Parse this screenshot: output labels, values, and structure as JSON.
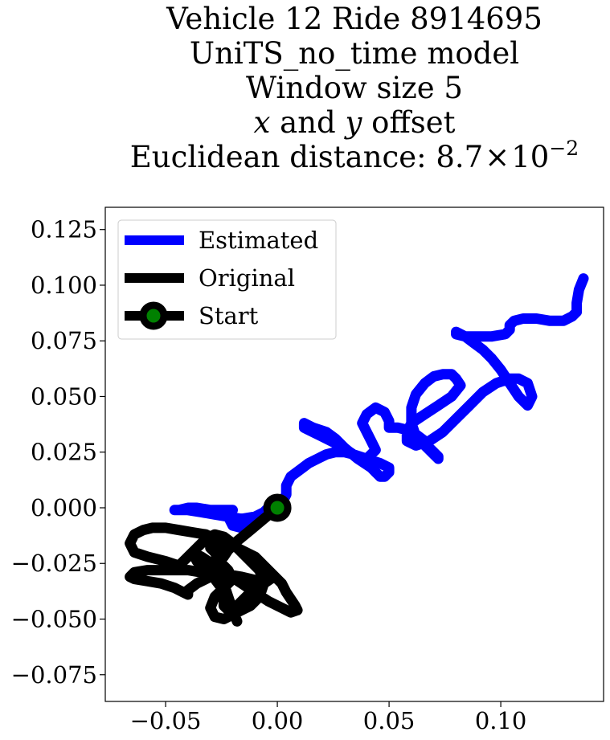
{
  "chart_data": {
    "type": "line",
    "title_lines": [
      "Vehicle 12 Ride 8914695",
      "UniTS_no_time model",
      "Window size 5",
      "x and y offset",
      "Euclidean distance: 8.7×10^-2"
    ],
    "title_parts": {
      "var_x": "x",
      "and": " and ",
      "var_y": "y",
      "offset": " offset",
      "dist_prefix": "Euclidean distance: ",
      "dist_mantissa": "8.7",
      "dist_times": "×",
      "dist_base": "10",
      "dist_exp": "−2"
    },
    "xlabel": "",
    "ylabel": "",
    "xlim": [
      -0.077,
      0.146
    ],
    "ylim": [
      -0.087,
      0.135
    ],
    "xticks": [
      -0.05,
      0.0,
      0.05,
      0.1
    ],
    "xtick_labels": [
      "−0.05",
      "0.00",
      "0.05",
      "0.10"
    ],
    "yticks": [
      -0.075,
      -0.05,
      -0.025,
      0.0,
      0.025,
      0.05,
      0.075,
      0.1,
      0.125
    ],
    "ytick_labels": [
      "−0.075",
      "−0.050",
      "−0.025",
      "0.000",
      "0.025",
      "0.050",
      "0.075",
      "0.100",
      "0.125"
    ],
    "grid": false,
    "legend_position": "top-left",
    "series": [
      {
        "name": "Estimated",
        "color": "#0000ff",
        "x": [
          0.0,
          -0.002,
          -0.006,
          -0.01,
          -0.016,
          -0.02,
          -0.022,
          -0.02,
          -0.024,
          -0.03,
          -0.036,
          -0.04,
          -0.044,
          -0.046,
          -0.044,
          -0.04,
          -0.034,
          -0.028,
          -0.022,
          -0.016,
          -0.01,
          -0.006,
          -0.003,
          0.0,
          0.003,
          0.004,
          0.004,
          0.006,
          0.01,
          0.014,
          0.018,
          0.022,
          0.026,
          0.03,
          0.034,
          0.04,
          0.046,
          0.05,
          0.05,
          0.048,
          0.046,
          0.044,
          0.042,
          0.036,
          0.03,
          0.026,
          0.022,
          0.016,
          0.012,
          0.012,
          0.02,
          0.028,
          0.034,
          0.04,
          0.044,
          0.042,
          0.04,
          0.038,
          0.04,
          0.044,
          0.048,
          0.05,
          0.05,
          0.05,
          0.054,
          0.058,
          0.062,
          0.066,
          0.068,
          0.07,
          0.072,
          0.072,
          0.07,
          0.066,
          0.062,
          0.06,
          0.06,
          0.062,
          0.066,
          0.07,
          0.074,
          0.078,
          0.08,
          0.082,
          0.078,
          0.072,
          0.066,
          0.06,
          0.058,
          0.058,
          0.062,
          0.068,
          0.074,
          0.08,
          0.086,
          0.092,
          0.098,
          0.104,
          0.108,
          0.112,
          0.114,
          0.112,
          0.108,
          0.104,
          0.1,
          0.096,
          0.092,
          0.088,
          0.084,
          0.08,
          0.08,
          0.084,
          0.09,
          0.096,
          0.102,
          0.104,
          0.104,
          0.106,
          0.11,
          0.116,
          0.122,
          0.128,
          0.132,
          0.134,
          0.134,
          0.135,
          0.137
        ],
        "y": [
          0.0,
          -0.001,
          -0.003,
          -0.006,
          -0.009,
          -0.008,
          -0.004,
          -0.001,
          -0.001,
          -0.001,
          0.0,
          0.0,
          -0.001,
          -0.001,
          -0.001,
          -0.001,
          -0.002,
          -0.003,
          -0.004,
          -0.005,
          -0.004,
          -0.002,
          0.001,
          0.003,
          0.004,
          0.006,
          0.01,
          0.014,
          0.017,
          0.02,
          0.022,
          0.024,
          0.025,
          0.025,
          0.024,
          0.022,
          0.02,
          0.018,
          0.016,
          0.014,
          0.014,
          0.016,
          0.018,
          0.022,
          0.027,
          0.031,
          0.034,
          0.036,
          0.038,
          0.036,
          0.032,
          0.028,
          0.024,
          0.022,
          0.026,
          0.03,
          0.034,
          0.038,
          0.042,
          0.045,
          0.043,
          0.039,
          0.036,
          0.036,
          0.036,
          0.035,
          0.033,
          0.03,
          0.027,
          0.025,
          0.023,
          0.022,
          0.024,
          0.028,
          0.032,
          0.038,
          0.045,
          0.051,
          0.056,
          0.059,
          0.06,
          0.06,
          0.058,
          0.055,
          0.05,
          0.046,
          0.042,
          0.038,
          0.034,
          0.03,
          0.028,
          0.03,
          0.034,
          0.04,
          0.046,
          0.052,
          0.056,
          0.058,
          0.058,
          0.056,
          0.05,
          0.046,
          0.05,
          0.056,
          0.062,
          0.067,
          0.071,
          0.074,
          0.077,
          0.079,
          0.078,
          0.077,
          0.077,
          0.077,
          0.078,
          0.08,
          0.082,
          0.084,
          0.085,
          0.085,
          0.084,
          0.084,
          0.086,
          0.088,
          0.092,
          0.098,
          0.103
        ]
      },
      {
        "name": "Original",
        "color": "#000000",
        "x": [
          0.0,
          -0.006,
          -0.012,
          -0.018,
          -0.022,
          -0.024,
          -0.026,
          -0.028,
          -0.032,
          -0.038,
          -0.044,
          -0.05,
          -0.056,
          -0.06,
          -0.064,
          -0.066,
          -0.064,
          -0.058,
          -0.05,
          -0.044,
          -0.04,
          -0.036,
          -0.032,
          -0.028,
          -0.024,
          -0.02,
          -0.016,
          -0.012,
          -0.008,
          -0.006,
          -0.008,
          -0.012,
          -0.016,
          -0.02,
          -0.024,
          -0.028,
          -0.03,
          -0.028,
          -0.024,
          -0.02,
          -0.022,
          -0.026,
          -0.028,
          -0.03,
          -0.03,
          -0.026,
          -0.022,
          -0.018,
          -0.014,
          -0.01,
          -0.006,
          -0.002,
          0.002,
          0.004,
          0.006,
          0.008,
          0.009,
          0.006,
          0.002,
          -0.004,
          -0.01,
          -0.016,
          -0.022,
          -0.028,
          -0.034,
          -0.038,
          -0.036,
          -0.032,
          -0.028,
          -0.025,
          -0.024,
          -0.024,
          -0.022,
          -0.018,
          -0.014,
          -0.01,
          -0.006,
          -0.003,
          -0.004,
          -0.008,
          -0.012,
          -0.016,
          -0.022,
          -0.028,
          -0.034,
          -0.04,
          -0.046,
          -0.052,
          -0.058,
          -0.064,
          -0.066,
          -0.064,
          -0.058,
          -0.052,
          -0.046,
          -0.042,
          -0.04,
          -0.04,
          -0.036,
          -0.03,
          -0.026,
          -0.024,
          -0.022,
          -0.02,
          -0.018
        ],
        "y": [
          0.0,
          -0.005,
          -0.01,
          -0.015,
          -0.019,
          -0.022,
          -0.018,
          -0.014,
          -0.012,
          -0.011,
          -0.01,
          -0.009,
          -0.009,
          -0.01,
          -0.012,
          -0.016,
          -0.02,
          -0.022,
          -0.024,
          -0.026,
          -0.022,
          -0.018,
          -0.014,
          -0.012,
          -0.013,
          -0.016,
          -0.02,
          -0.024,
          -0.028,
          -0.034,
          -0.04,
          -0.044,
          -0.046,
          -0.048,
          -0.05,
          -0.049,
          -0.045,
          -0.04,
          -0.036,
          -0.032,
          -0.028,
          -0.024,
          -0.02,
          -0.018,
          -0.016,
          -0.015,
          -0.016,
          -0.018,
          -0.02,
          -0.022,
          -0.026,
          -0.03,
          -0.034,
          -0.038,
          -0.041,
          -0.044,
          -0.046,
          -0.047,
          -0.045,
          -0.042,
          -0.038,
          -0.034,
          -0.03,
          -0.026,
          -0.022,
          -0.02,
          -0.024,
          -0.028,
          -0.032,
          -0.036,
          -0.04,
          -0.044,
          -0.046,
          -0.044,
          -0.04,
          -0.036,
          -0.034,
          -0.032,
          -0.032,
          -0.033,
          -0.032,
          -0.031,
          -0.03,
          -0.029,
          -0.029,
          -0.028,
          -0.028,
          -0.028,
          -0.028,
          -0.029,
          -0.031,
          -0.032,
          -0.033,
          -0.034,
          -0.036,
          -0.038,
          -0.039,
          -0.037,
          -0.034,
          -0.031,
          -0.03,
          -0.034,
          -0.04,
          -0.046,
          -0.051
        ]
      }
    ],
    "start": {
      "name": "Start",
      "x": 0.0,
      "y": 0.0,
      "face_color": "#008000",
      "edge_color": "#000000"
    }
  }
}
